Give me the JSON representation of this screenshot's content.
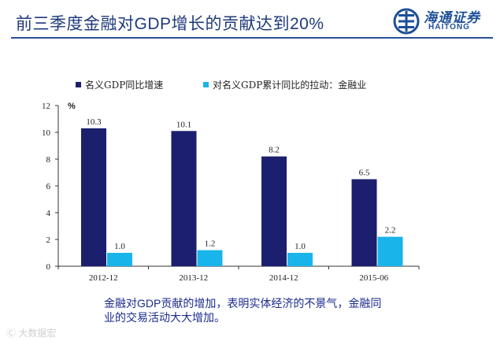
{
  "slide": {
    "title": "前三季度金融对GDP增长的贡献达到20%",
    "caption": "金融对GDP贡献的增加，表明实体经济的不景气，金融同业的交易活动大大增加。",
    "logo_cn": "海通证券",
    "logo_en": "HAITONG",
    "watermark": "Ⓒ 大数据宏"
  },
  "colors": {
    "title": "#1f3a7a",
    "series1": "#1b1f6e",
    "series2": "#19b4ea",
    "axis": "#333333",
    "logo": "#1d4f96"
  },
  "chart_data": {
    "type": "bar",
    "categories": [
      "2012-12",
      "2013-12",
      "2014-12",
      "2015-06"
    ],
    "series": [
      {
        "name": "名义GDP同比增速",
        "values": [
          10.3,
          10.1,
          8.2,
          6.5
        ]
      },
      {
        "name": "对名义GDP累计同比的拉动：金融业",
        "values": [
          1.0,
          1.2,
          1.0,
          2.2
        ]
      }
    ],
    "value_labels": [
      [
        "10.3",
        "10.1",
        "8.2",
        "6.5"
      ],
      [
        "1.0",
        "1.2",
        "1.0",
        "2.2"
      ]
    ],
    "ylim": [
      0,
      12
    ],
    "yticks": [
      0,
      2,
      4,
      6,
      8,
      10,
      12
    ],
    "yunit": "%",
    "legend_position": "top-left",
    "grid": false
  }
}
